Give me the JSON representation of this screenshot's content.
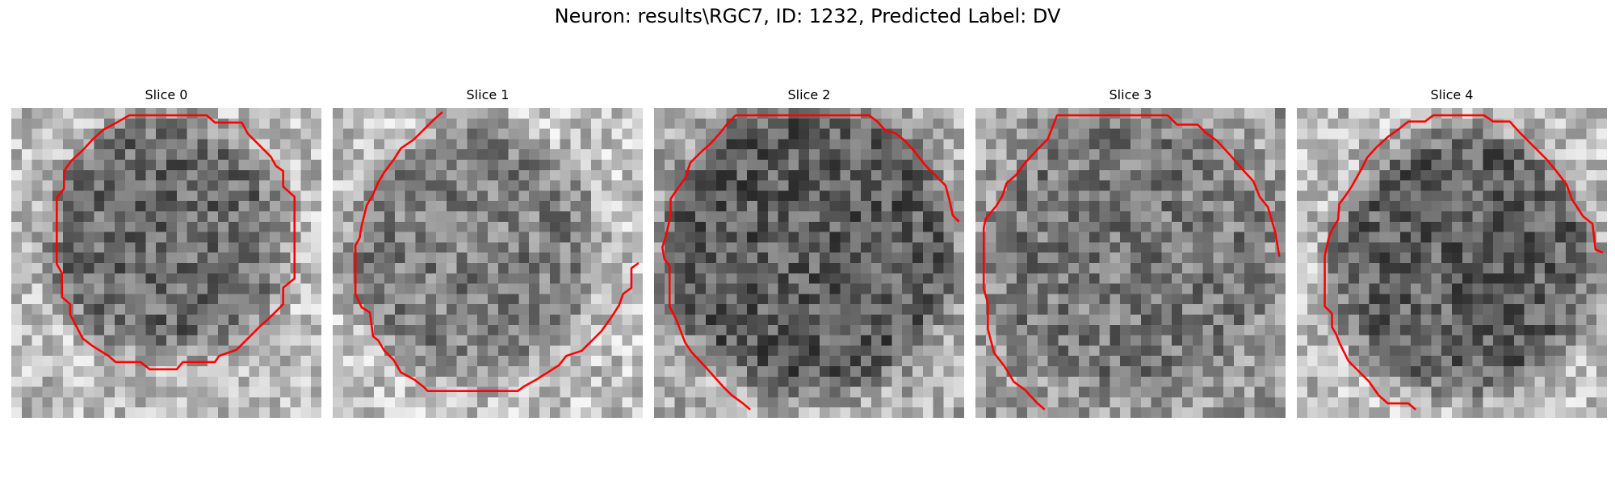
{
  "figure": {
    "title": "Neuron: results\\RGC7, ID: 1232, Predicted Label: DV",
    "contour_color": "#ff0000",
    "colormap": "gray"
  },
  "panels": [
    {
      "title": "Slice 0",
      "tone": "light background, medium-gray cell"
    },
    {
      "title": "Slice 1",
      "tone": "light background, medium-gray cell"
    },
    {
      "title": "Slice 2",
      "tone": "dark cell filling frame"
    },
    {
      "title": "Slice 3",
      "tone": "medium-gray cell"
    },
    {
      "title": "Slice 4",
      "tone": "light background, dark cell"
    }
  ]
}
